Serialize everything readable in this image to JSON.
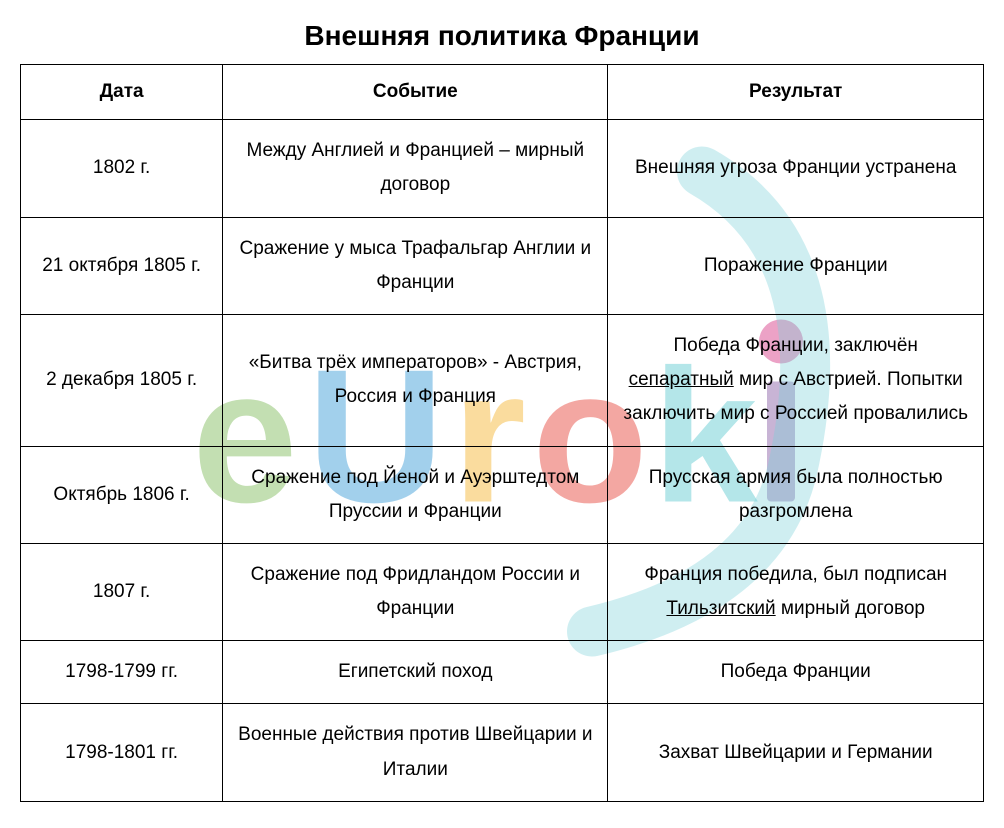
{
  "title": "Внешняя политика Франции",
  "columns": [
    "Дата",
    "Событие",
    "Результат"
  ],
  "rows": [
    {
      "date": "1802 г.",
      "event": "Между Англией и Францией – мирный договор",
      "result": "Внешняя угроза Франции устранена"
    },
    {
      "date": "21 октября 1805 г.",
      "event": "Сражение у мыса Трафальгар Англии и Франции",
      "result": "Поражение Франции"
    },
    {
      "date": "2 декабря 1805 г.",
      "event": "«Битва трёх императоров» - Австрия, Россия и Франция",
      "result_parts": [
        "Победа Франции, заключён ",
        {
          "u": "сепаратный"
        },
        " мир с Австрией. Попытки заключить мир с Россией провалились"
      ]
    },
    {
      "date": "Октябрь 1806 г.",
      "event": "Сражение под Йеной и Ауэрштедтом Пруссии и Франции",
      "result": "Прусская армия была полностью разгромлена"
    },
    {
      "date": "1807 г.",
      "event": "Сражение под Фридландом России и Франции",
      "result_parts": [
        "Франция победила, был подписан ",
        {
          "u": "Тильзитский"
        },
        " мирный договор"
      ]
    },
    {
      "date": "1798-1799 гг.",
      "event": "Египетский поход",
      "result": "Победа Франции"
    },
    {
      "date": "1798-1801 гг.",
      "event": "Военные действия против Швейцарии и Италии",
      "result": "Захват Швейцарии и Германии"
    }
  ],
  "watermark": {
    "text": "eUroki",
    "colors": {
      "e": "#7fba5a",
      "U": "#3a9bd6",
      "r": "#f5b942",
      "o": "#e8534a",
      "k": "#5fc8d0",
      "i_dot": "#d94a8f",
      "i_stem": "#7d4f9e"
    }
  },
  "style": {
    "background_color": "#ffffff",
    "border_color": "#000000",
    "text_color": "#000000",
    "title_fontsize": 28,
    "cell_fontsize": 19,
    "font_family": "Arial"
  }
}
